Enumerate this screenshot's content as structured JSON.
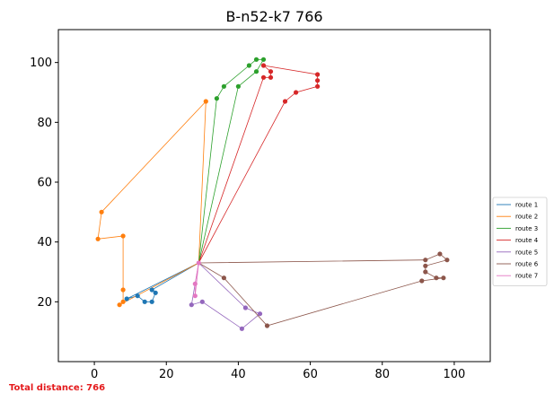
{
  "chart_data": {
    "type": "line",
    "title": "B-n52-k7 766",
    "xlabel": "",
    "ylabel": "",
    "xlim": [
      -10,
      110
    ],
    "ylim": [
      0,
      111
    ],
    "xticks": [
      0,
      20,
      40,
      60,
      80,
      100
    ],
    "yticks": [
      20,
      40,
      60,
      80,
      100
    ],
    "grid": false,
    "legend_position": "right",
    "depot": [
      29,
      33
    ],
    "series": [
      {
        "name": "route 1",
        "color": "#1f77b4",
        "points": [
          [
            29,
            33
          ],
          [
            16,
            24
          ],
          [
            17,
            23
          ],
          [
            16,
            20
          ],
          [
            14,
            20
          ],
          [
            12,
            22
          ],
          [
            9,
            21
          ],
          [
            29,
            33
          ]
        ]
      },
      {
        "name": "route 2",
        "color": "#ff7f0e",
        "points": [
          [
            29,
            33
          ],
          [
            7,
            19
          ],
          [
            8,
            20
          ],
          [
            8,
            24
          ],
          [
            8,
            42
          ],
          [
            1,
            41
          ],
          [
            2,
            50
          ],
          [
            31,
            87
          ],
          [
            29,
            33
          ]
        ]
      },
      {
        "name": "route 3",
        "color": "#2ca02c",
        "points": [
          [
            29,
            33
          ],
          [
            34,
            88
          ],
          [
            36,
            92
          ],
          [
            43,
            99
          ],
          [
            45,
            101
          ],
          [
            47,
            101
          ],
          [
            45,
            97
          ],
          [
            40,
            92
          ],
          [
            29,
            33
          ]
        ]
      },
      {
        "name": "route 4",
        "color": "#d62728",
        "points": [
          [
            29,
            33
          ],
          [
            47,
            95
          ],
          [
            49,
            95
          ],
          [
            49,
            97
          ],
          [
            47,
            99
          ],
          [
            62,
            96
          ],
          [
            62,
            94
          ],
          [
            62,
            92
          ],
          [
            56,
            90
          ],
          [
            53,
            87
          ],
          [
            29,
            33
          ]
        ]
      },
      {
        "name": "route 5",
        "color": "#9467bd",
        "points": [
          [
            29,
            33
          ],
          [
            27,
            19
          ],
          [
            30,
            20
          ],
          [
            41,
            11
          ],
          [
            46,
            16
          ],
          [
            42,
            18
          ],
          [
            29,
            33
          ]
        ]
      },
      {
        "name": "route 6",
        "color": "#8c564b",
        "points": [
          [
            29,
            33
          ],
          [
            92,
            34
          ],
          [
            96,
            36
          ],
          [
            98,
            34
          ],
          [
            92,
            32
          ],
          [
            92,
            30
          ],
          [
            95,
            28
          ],
          [
            97,
            28
          ],
          [
            91,
            27
          ],
          [
            48,
            12
          ],
          [
            36,
            28
          ],
          [
            29,
            33
          ]
        ]
      },
      {
        "name": "route 7",
        "color": "#e377c2",
        "points": [
          [
            29,
            33
          ],
          [
            28,
            26
          ],
          [
            28,
            22
          ],
          [
            29,
            33
          ]
        ]
      }
    ]
  },
  "footer": {
    "total_distance_label": "Total distance: 766"
  }
}
